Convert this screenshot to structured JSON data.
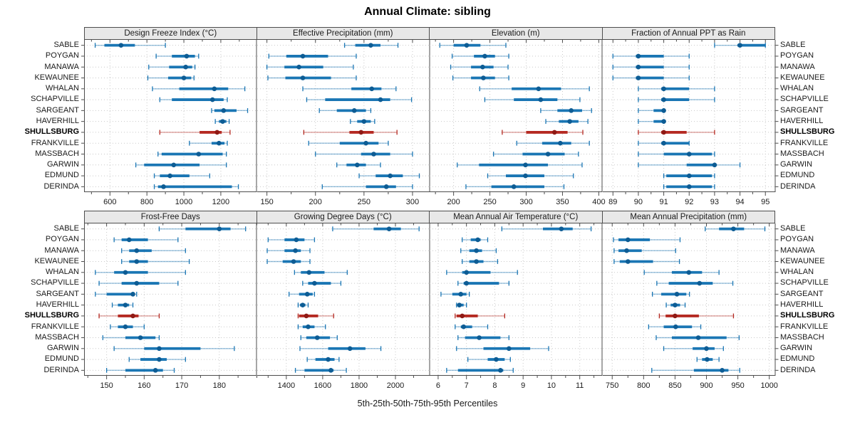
{
  "figure": {
    "title": "Annual Climate: sibling",
    "xlabel": "5th-25th-50th-75th-95th Percentiles"
  },
  "chart_data": {
    "type": "dotplot-trellis",
    "title": "Annual Climate: sibling",
    "xlabel": "5th-25th-50th-75th-95th Percentiles",
    "percentiles": [
      5,
      25,
      50,
      75,
      95
    ],
    "legend_position": "none",
    "grid": true,
    "layout": {
      "rows": 2,
      "cols": 4
    },
    "sites": [
      "SABLE",
      "POYGAN",
      "MANAWA",
      "KEWAUNEE",
      "WHALAN",
      "SCHAPVILLE",
      "SARGEANT",
      "HAVERHILL",
      "SHULLSBURG",
      "FRANKVILLE",
      "MASSBACH",
      "GARWIN",
      "EDMUND",
      "DERINDA"
    ],
    "highlight_site": "SHULLSBURG",
    "colors": {
      "series": "#1a76b4",
      "series_dot": "#0d5c94",
      "highlight": "#b52a22",
      "highlight_dot": "#8f1a15",
      "strip_bg": "#e8e8e8",
      "panel_border": "#4d4d4d",
      "gridline": "#c9c9c9",
      "tick": "#4d4d4d",
      "tick_label": "#1a1a1a"
    },
    "panels": [
      {
        "title": "Design Freeze Index (°C)",
        "row": 0,
        "col": 0,
        "xlim": [
          460,
          1395
        ],
        "ticks": [
          600,
          800,
          1000,
          1200
        ],
        "values": [
          [
            520,
            570,
            660,
            735,
            900
          ],
          [
            850,
            935,
            1015,
            1060,
            1080
          ],
          [
            810,
            920,
            1010,
            1045,
            1060
          ],
          [
            805,
            915,
            1000,
            1040,
            1055
          ],
          [
            830,
            975,
            1165,
            1240,
            1330
          ],
          [
            870,
            935,
            1155,
            1215,
            1235
          ],
          [
            1150,
            1165,
            1215,
            1285,
            1345
          ],
          [
            1170,
            1190,
            1210,
            1230,
            1245
          ],
          [
            870,
            1085,
            1180,
            1205,
            1250
          ],
          [
            1030,
            1150,
            1190,
            1220,
            1235
          ],
          [
            860,
            880,
            1080,
            1210,
            1230
          ],
          [
            740,
            785,
            945,
            1085,
            1230
          ],
          [
            840,
            870,
            925,
            1030,
            1140
          ],
          [
            840,
            860,
            890,
            1260,
            1295
          ]
        ]
      },
      {
        "title": "Effective Precipitation (mm)",
        "row": 0,
        "col": 1,
        "xlim": [
          140,
          318
        ],
        "ticks": [
          150,
          200,
          250,
          300
        ],
        "values": [
          [
            230,
            241,
            257,
            267,
            285
          ],
          [
            152,
            170,
            187,
            213,
            242
          ],
          [
            150,
            168,
            183,
            208,
            239
          ],
          [
            151,
            169,
            187,
            216,
            242
          ],
          [
            187,
            237,
            258,
            268,
            283
          ],
          [
            191,
            210,
            267,
            277,
            299
          ],
          [
            204,
            222,
            240,
            252,
            257
          ],
          [
            236,
            243,
            250,
            257,
            261
          ],
          [
            188,
            235,
            247,
            260,
            284
          ],
          [
            193,
            225,
            252,
            265,
            275
          ],
          [
            200,
            247,
            260,
            277,
            300
          ],
          [
            222,
            232,
            243,
            252,
            267
          ],
          [
            245,
            262,
            277,
            290,
            307
          ],
          [
            207,
            252,
            273,
            283,
            300
          ]
        ]
      },
      {
        "title": "Elevation (m)",
        "row": 0,
        "col": 2,
        "xlim": [
          167,
          405
        ],
        "ticks": [
          200,
          250,
          300,
          350,
          400
        ],
        "values": [
          [
            181,
            200,
            218,
            237,
            272
          ],
          [
            198,
            228,
            243,
            257,
            276
          ],
          [
            196,
            224,
            240,
            255,
            275
          ],
          [
            199,
            224,
            241,
            257,
            276
          ],
          [
            236,
            280,
            317,
            348,
            387
          ],
          [
            243,
            283,
            320,
            343,
            374
          ],
          [
            320,
            343,
            362,
            377,
            390
          ],
          [
            327,
            345,
            360,
            372,
            385
          ],
          [
            267,
            300,
            339,
            357,
            378
          ],
          [
            287,
            322,
            347,
            362,
            387
          ],
          [
            255,
            295,
            330,
            353,
            372
          ],
          [
            205,
            235,
            299,
            330,
            377
          ],
          [
            247,
            272,
            299,
            325,
            365
          ],
          [
            217,
            252,
            283,
            325,
            352
          ]
        ]
      },
      {
        "title": "Fraction of Annual PPT as Rain",
        "row": 0,
        "col": 3,
        "xlim": [
          88.6,
          95.4
        ],
        "ticks": [
          89,
          90,
          91,
          92,
          93,
          94,
          95
        ],
        "values": [
          [
            93,
            93.9,
            94,
            95,
            95
          ],
          [
            89,
            89.9,
            90,
            91,
            92
          ],
          [
            89,
            89.9,
            90,
            91,
            92
          ],
          [
            89,
            89.9,
            90,
            91,
            92
          ],
          [
            90,
            90.9,
            91,
            92,
            93
          ],
          [
            90,
            90.9,
            91,
            92,
            93
          ],
          [
            90,
            90.6,
            91,
            91,
            91
          ],
          [
            90,
            90.6,
            91,
            91,
            91
          ],
          [
            90,
            90.9,
            91,
            91.9,
            93
          ],
          [
            90,
            90.9,
            91,
            92,
            92
          ],
          [
            90,
            91,
            92,
            92.9,
            93
          ],
          [
            90,
            91.9,
            93,
            93,
            94
          ],
          [
            91,
            91.1,
            92,
            92.9,
            93
          ],
          [
            91,
            91.1,
            92,
            92.9,
            93
          ]
        ]
      },
      {
        "title": "Frost-Free Days",
        "row": 1,
        "col": 0,
        "xlim": [
          144,
          190
        ],
        "ticks": [
          150,
          160,
          170,
          180
        ],
        "values": [
          [
            164,
            171,
            180,
            183,
            187
          ],
          [
            152,
            154,
            156,
            161,
            169
          ],
          [
            154,
            156,
            158,
            162,
            171
          ],
          [
            154,
            156,
            158,
            161,
            172
          ],
          [
            147,
            152,
            155,
            161,
            171
          ],
          [
            148,
            154,
            158,
            164,
            169
          ],
          [
            147,
            150,
            157,
            157.5,
            158
          ],
          [
            151.5,
            153,
            155,
            156,
            157
          ],
          [
            148,
            153,
            157,
            158.5,
            164
          ],
          [
            151,
            153,
            155,
            157,
            160
          ],
          [
            149,
            155,
            159,
            163,
            164
          ],
          [
            152,
            160,
            164,
            175,
            184
          ],
          [
            156,
            159,
            164,
            166,
            171
          ],
          [
            150,
            155,
            163,
            165,
            168
          ]
        ]
      },
      {
        "title": "Growing Degree Days (°C)",
        "row": 1,
        "col": 1,
        "xlim": [
          1240,
          2190
        ],
        "ticks": [
          1400,
          1600,
          1800,
          2000
        ],
        "values": [
          [
            1655,
            1880,
            1965,
            2030,
            2130
          ],
          [
            1300,
            1390,
            1455,
            1500,
            1555
          ],
          [
            1295,
            1390,
            1450,
            1480,
            1530
          ],
          [
            1295,
            1380,
            1440,
            1480,
            1530
          ],
          [
            1445,
            1480,
            1525,
            1610,
            1735
          ],
          [
            1490,
            1520,
            1555,
            1645,
            1700
          ],
          [
            1415,
            1470,
            1515,
            1545,
            1555
          ],
          [
            1465,
            1475,
            1490,
            1505,
            1520
          ],
          [
            1465,
            1470,
            1510,
            1575,
            1660
          ],
          [
            1465,
            1490,
            1520,
            1555,
            1615
          ],
          [
            1480,
            1510,
            1570,
            1640,
            1680
          ],
          [
            1475,
            1630,
            1750,
            1835,
            1920
          ],
          [
            1515,
            1560,
            1630,
            1665,
            1690
          ],
          [
            1450,
            1500,
            1645,
            1660,
            1730
          ]
        ]
      },
      {
        "title": "Mean Annual Air Temperature (°C)",
        "row": 1,
        "col": 2,
        "xlim": [
          5.7,
          11.8
        ],
        "ticks": [
          6,
          7,
          8,
          9,
          10,
          11
        ],
        "values": [
          [
            8.25,
            9.7,
            10.35,
            10.75,
            11.4
          ],
          [
            6.85,
            7.15,
            7.4,
            7.5,
            7.75
          ],
          [
            6.8,
            7.1,
            7.35,
            7.55,
            8.05
          ],
          [
            6.85,
            7.1,
            7.35,
            7.6,
            8.1
          ],
          [
            6.3,
            6.85,
            7.0,
            7.85,
            8.8
          ],
          [
            6.7,
            6.9,
            7.0,
            8.15,
            8.5
          ],
          [
            6.1,
            6.5,
            6.8,
            7.0,
            7.1
          ],
          [
            6.65,
            6.7,
            6.75,
            6.9,
            7.0
          ],
          [
            6.6,
            6.65,
            6.85,
            7.4,
            8.35
          ],
          [
            6.6,
            6.8,
            6.9,
            7.2,
            7.75
          ],
          [
            6.7,
            6.95,
            7.45,
            8.2,
            8.5
          ],
          [
            6.65,
            7.6,
            8.5,
            9.25,
            9.9
          ],
          [
            7.05,
            7.75,
            8.05,
            8.35,
            8.55
          ],
          [
            6.3,
            6.7,
            8.2,
            8.3,
            8.65
          ]
        ]
      },
      {
        "title": "Mean Annual Precipitation (mm)",
        "row": 1,
        "col": 3,
        "xlim": [
          735,
          1010
        ],
        "ticks": [
          750,
          800,
          850,
          900,
          950,
          1000
        ],
        "values": [
          [
            898,
            920,
            943,
            960,
            993
          ],
          [
            752,
            760,
            775,
            810,
            858
          ],
          [
            753,
            760,
            773,
            797,
            851
          ],
          [
            753,
            762,
            775,
            815,
            857
          ],
          [
            801,
            845,
            872,
            893,
            920
          ],
          [
            821,
            840,
            889,
            910,
            942
          ],
          [
            814,
            828,
            853,
            868,
            873
          ],
          [
            836,
            843,
            850,
            858,
            866
          ],
          [
            825,
            835,
            850,
            888,
            943
          ],
          [
            808,
            832,
            851,
            877,
            891
          ],
          [
            820,
            845,
            887,
            932,
            952
          ],
          [
            832,
            878,
            900,
            913,
            927
          ],
          [
            885,
            893,
            901,
            910,
            920
          ],
          [
            813,
            880,
            925,
            935,
            953
          ]
        ]
      }
    ]
  }
}
